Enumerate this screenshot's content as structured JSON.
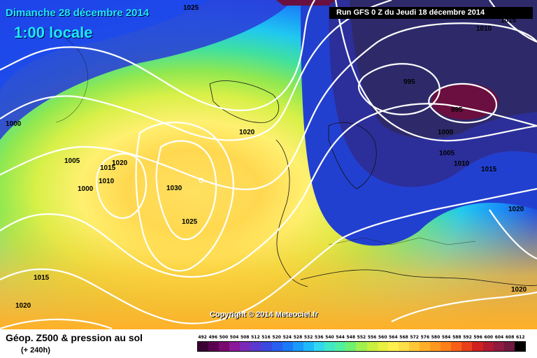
{
  "header": {
    "date_line": "Dimanche 28 décembre 2014",
    "time_line": "1:00 locale",
    "run_info": "Run GFS 0 Z du Jeudi 18 décembre 2014"
  },
  "map": {
    "copyright": "Copyright © 2014 Meteociel.fr",
    "isobar_labels": [
      "1025",
      "1010",
      "1015",
      "995",
      "995",
      "1020",
      "1000",
      "1005",
      "1010",
      "1015",
      "1000",
      "1005",
      "1015",
      "1020",
      "1010",
      "1000",
      "1030",
      "1025",
      "1020",
      "1015",
      "1020",
      "1020"
    ],
    "colors": {
      "contour": "#ffffff",
      "low_core": "#6a0f3f",
      "high_core": "#ffd54a"
    }
  },
  "legend": {
    "title": "Géop. Z500 & pression au sol",
    "subtitle": "(+ 240h)",
    "scale_values": [
      "492",
      "496",
      "500",
      "504",
      "508",
      "512",
      "516",
      "520",
      "524",
      "528",
      "532",
      "536",
      "540",
      "544",
      "548",
      "552",
      "556",
      "560",
      "564",
      "568",
      "572",
      "576",
      "580",
      "584",
      "588",
      "592",
      "596",
      "600",
      "604",
      "608",
      "612"
    ],
    "scale_colors": [
      "#3a0033",
      "#5a0050",
      "#7a0a70",
      "#8b1a9a",
      "#7a2ab8",
      "#5a3ad0",
      "#3a4ae0",
      "#2a5ef0",
      "#1a7af8",
      "#1a9afc",
      "#20bafc",
      "#30d8f0",
      "#40e8c8",
      "#50f0a0",
      "#70f070",
      "#a0f050",
      "#c8f040",
      "#e8f040",
      "#fff050",
      "#ffe048",
      "#ffc838",
      "#ffb028",
      "#ff9820",
      "#ff8018",
      "#f86018",
      "#e84018",
      "#d02020",
      "#b01a30",
      "#901a40",
      "#701a40",
      "#000000"
    ]
  }
}
